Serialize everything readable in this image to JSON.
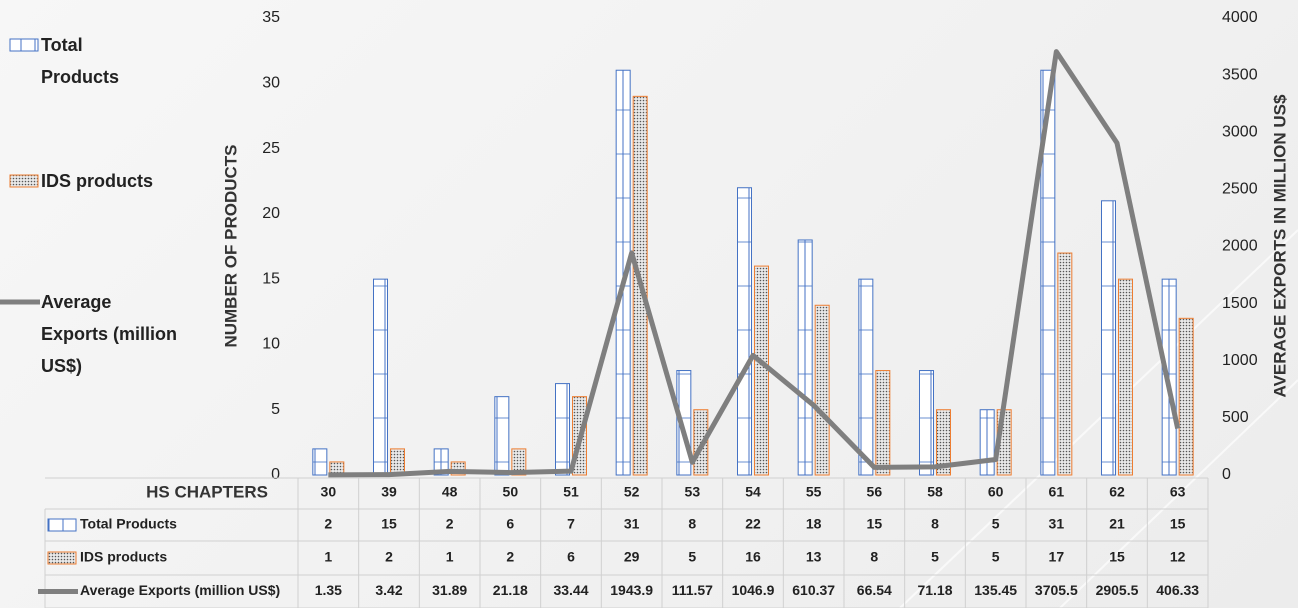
{
  "chart_data": {
    "type": "bar_line",
    "x_label": "HS CHAPTERS",
    "y_label": "NUMBER OF PRODUCTS",
    "y2_label": "AVERAGE EXPORTS IN MILLION US$",
    "categories": [
      "30",
      "39",
      "48",
      "50",
      "51",
      "52",
      "53",
      "54",
      "55",
      "56",
      "58",
      "60",
      "61",
      "62",
      "63"
    ],
    "series": [
      {
        "name": "Total Products",
        "type": "bar",
        "color": "#4472c4",
        "values": [
          2,
          15,
          2,
          6,
          7,
          31,
          8,
          22,
          18,
          15,
          8,
          5,
          31,
          21,
          15
        ]
      },
      {
        "name": "IDS products",
        "type": "bar",
        "color": "#ed7d31",
        "values": [
          1,
          2,
          1,
          2,
          6,
          29,
          5,
          16,
          13,
          8,
          5,
          5,
          17,
          15,
          12
        ]
      },
      {
        "name": "Average Exports (million US$)",
        "type": "line",
        "axis": "y2",
        "color": "#7f7f7f",
        "values": [
          1.35,
          3.42,
          31.89,
          21.18,
          33.44,
          1943.9,
          111.57,
          1046.9,
          610.37,
          66.54,
          71.18,
          135.45,
          3705.5,
          2905.5,
          406.33
        ]
      }
    ],
    "ylim": [
      0,
      35
    ],
    "yticks": [
      0,
      5,
      10,
      15,
      20,
      25,
      30,
      35
    ],
    "y2lim": [
      0,
      4000
    ],
    "y2ticks": [
      0,
      500,
      1000,
      1500,
      2000,
      2500,
      3000,
      3500,
      4000
    ],
    "grid": false,
    "legend": "left",
    "data_table": true
  }
}
